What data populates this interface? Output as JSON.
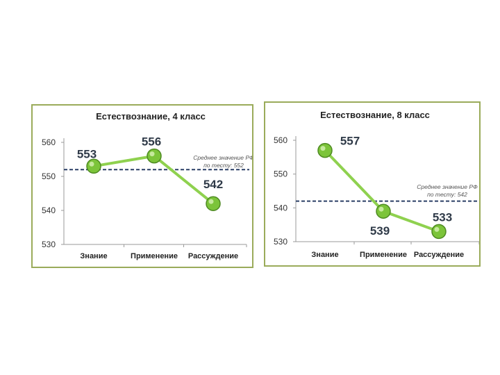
{
  "chart_data": [
    {
      "type": "line",
      "title": "Естествознание, 4 класс",
      "categories": [
        "Знание",
        "Применение",
        "Рассуждение"
      ],
      "values": [
        553,
        556,
        542
      ],
      "value_labels": [
        "553",
        "556",
        "542"
      ],
      "ylim": [
        530,
        560
      ],
      "yticks": [
        530,
        540,
        550,
        560
      ],
      "ytick_labels": [
        "530",
        "540",
        "550",
        "560"
      ],
      "reference_line": {
        "value": 552,
        "label": [
          "Среднее значение РФ",
          "по тесту: 552"
        ]
      },
      "grid": false,
      "colors": {
        "line": "#8fd14f",
        "marker": "#7cc43a",
        "marker_edge": "#4e8a22",
        "reference": "#2a3f66",
        "border": "#9aab5a"
      }
    },
    {
      "type": "line",
      "title": "Естествознание, 8 класс",
      "categories": [
        "Знание",
        "Применение",
        "Рассуждение"
      ],
      "values": [
        557,
        539,
        533
      ],
      "value_labels": [
        "557",
        "539",
        "533"
      ],
      "ylim": [
        530,
        560
      ],
      "yticks": [
        530,
        540,
        550,
        560
      ],
      "ytick_labels": [
        "530",
        "540",
        "550",
        "560"
      ],
      "reference_line": {
        "value": 542,
        "label": [
          "Среднее значение РФ",
          "по тесту: 542"
        ]
      },
      "grid": false,
      "colors": {
        "line": "#8fd14f",
        "marker": "#7cc43a",
        "marker_edge": "#4e8a22",
        "reference": "#2a3f66",
        "border": "#9aab5a"
      }
    }
  ]
}
